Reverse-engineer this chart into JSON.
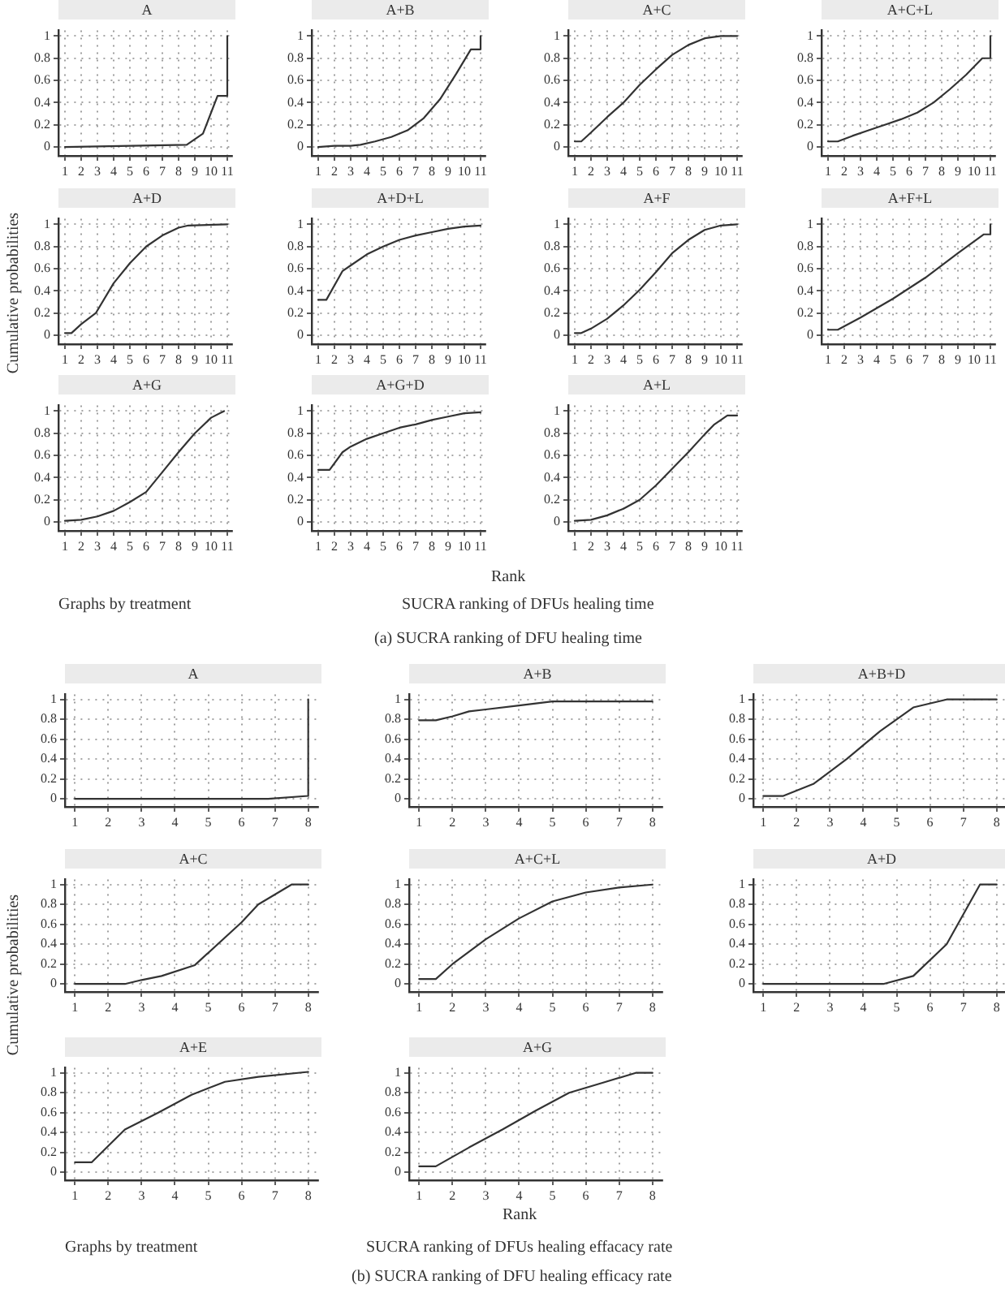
{
  "chart_data": [
    {
      "type": "line",
      "title": "A",
      "x": [
        1,
        8.5,
        9.5,
        10.4,
        11,
        11
      ],
      "values": [
        0,
        0.02,
        0.12,
        0.46,
        0.46,
        1
      ],
      "color": "#333333",
      "xlim": [
        0.6,
        11.3
      ],
      "xticks": [
        1,
        2,
        3,
        4,
        5,
        6,
        7,
        8,
        9,
        10,
        11
      ],
      "ylim": [
        -0.08,
        1.05
      ],
      "yticks": [
        0,
        0.2,
        0.4,
        0.6,
        0.8,
        1
      ],
      "grid": true
    },
    {
      "type": "line",
      "title": "A+B",
      "x": [
        1,
        2,
        3,
        3.6,
        4.5,
        5.5,
        6.5,
        7.5,
        8.5,
        9.5,
        10.4,
        11,
        11
      ],
      "values": [
        0,
        0.01,
        0.01,
        0.02,
        0.05,
        0.09,
        0.15,
        0.26,
        0.43,
        0.66,
        0.88,
        0.88,
        1
      ],
      "color": "#333333",
      "xlim": [
        0.6,
        11.3
      ],
      "xticks": [
        1,
        2,
        3,
        4,
        5,
        6,
        7,
        8,
        9,
        10,
        11
      ],
      "ylim": [
        -0.08,
        1.05
      ],
      "yticks": [
        0,
        0.2,
        0.4,
        0.6,
        0.8,
        1
      ],
      "grid": true
    },
    {
      "type": "line",
      "title": "A+C",
      "x": [
        1,
        1.4,
        2,
        3,
        4,
        5,
        6,
        7,
        8,
        9,
        10,
        11
      ],
      "values": [
        0.05,
        0.05,
        0.13,
        0.27,
        0.4,
        0.56,
        0.7,
        0.83,
        0.92,
        0.98,
        1,
        1
      ],
      "color": "#333333",
      "xlim": [
        0.6,
        11.3
      ],
      "xticks": [
        1,
        2,
        3,
        4,
        5,
        6,
        7,
        8,
        9,
        10,
        11
      ],
      "ylim": [
        -0.08,
        1.05
      ],
      "yticks": [
        0,
        0.2,
        0.4,
        0.6,
        0.8,
        1
      ],
      "grid": true
    },
    {
      "type": "line",
      "title": "A+C+L",
      "x": [
        1,
        1.6,
        2.5,
        3.5,
        4.5,
        5.5,
        6.5,
        7.5,
        8.5,
        9.5,
        10.5,
        11,
        11
      ],
      "values": [
        0.05,
        0.05,
        0.1,
        0.15,
        0.2,
        0.25,
        0.31,
        0.4,
        0.52,
        0.65,
        0.8,
        0.8,
        1
      ],
      "color": "#333333",
      "xlim": [
        0.6,
        11.3
      ],
      "xticks": [
        1,
        2,
        3,
        4,
        5,
        6,
        7,
        8,
        9,
        10,
        11
      ],
      "ylim": [
        -0.08,
        1.05
      ],
      "yticks": [
        0,
        0.2,
        0.4,
        0.6,
        0.8,
        1
      ],
      "grid": true
    },
    {
      "type": "line",
      "title": "A+D",
      "x": [
        1,
        1.4,
        2,
        2.9,
        4,
        5,
        6,
        7,
        8,
        8.6,
        11
      ],
      "values": [
        0.02,
        0.02,
        0.1,
        0.2,
        0.47,
        0.65,
        0.8,
        0.9,
        0.97,
        0.99,
        1
      ],
      "color": "#333333",
      "xlim": [
        0.6,
        11.3
      ],
      "xticks": [
        1,
        2,
        3,
        4,
        5,
        6,
        7,
        8,
        9,
        10,
        11
      ],
      "ylim": [
        -0.08,
        1.05
      ],
      "yticks": [
        0,
        0.2,
        0.4,
        0.6,
        0.8,
        1
      ],
      "grid": true
    },
    {
      "type": "line",
      "title": "A+D+L",
      "x": [
        1,
        1.5,
        2.5,
        3,
        4,
        5,
        6,
        7,
        8,
        9,
        10,
        11
      ],
      "values": [
        0.32,
        0.32,
        0.58,
        0.63,
        0.73,
        0.8,
        0.86,
        0.9,
        0.93,
        0.96,
        0.98,
        0.99
      ],
      "color": "#333333",
      "xlim": [
        0.6,
        11.3
      ],
      "xticks": [
        1,
        2,
        3,
        4,
        5,
        6,
        7,
        8,
        9,
        10,
        11
      ],
      "ylim": [
        -0.08,
        1.05
      ],
      "yticks": [
        0,
        0.2,
        0.4,
        0.6,
        0.8,
        1
      ],
      "grid": true
    },
    {
      "type": "line",
      "title": "A+F",
      "x": [
        1,
        1.4,
        2,
        3,
        4,
        5,
        6,
        7,
        8,
        9,
        10,
        11
      ],
      "values": [
        0.02,
        0.02,
        0.06,
        0.15,
        0.27,
        0.41,
        0.57,
        0.74,
        0.86,
        0.95,
        0.99,
        1
      ],
      "color": "#333333",
      "xlim": [
        0.6,
        11.3
      ],
      "xticks": [
        1,
        2,
        3,
        4,
        5,
        6,
        7,
        8,
        9,
        10,
        11
      ],
      "ylim": [
        -0.08,
        1.05
      ],
      "yticks": [
        0,
        0.2,
        0.4,
        0.6,
        0.8,
        1
      ],
      "grid": true
    },
    {
      "type": "line",
      "title": "A+F+L",
      "x": [
        1,
        1.6,
        3,
        5,
        7,
        9,
        10.6,
        11,
        11
      ],
      "values": [
        0.05,
        0.05,
        0.16,
        0.33,
        0.52,
        0.74,
        0.91,
        0.91,
        1
      ],
      "color": "#333333",
      "xlim": [
        0.6,
        11.3
      ],
      "xticks": [
        1,
        2,
        3,
        4,
        5,
        6,
        7,
        8,
        9,
        10,
        11
      ],
      "ylim": [
        -0.08,
        1.05
      ],
      "yticks": [
        0,
        0.2,
        0.4,
        0.6,
        0.8,
        1
      ],
      "grid": true
    },
    {
      "type": "line",
      "title": "A+G",
      "x": [
        1,
        2,
        3,
        4,
        5,
        6,
        7,
        8,
        9,
        10,
        10.8
      ],
      "values": [
        0.01,
        0.02,
        0.05,
        0.1,
        0.18,
        0.27,
        0.45,
        0.63,
        0.8,
        0.94,
        1
      ],
      "color": "#333333",
      "xlim": [
        0.6,
        11.3
      ],
      "xticks": [
        1,
        2,
        3,
        4,
        5,
        6,
        7,
        8,
        9,
        10,
        11
      ],
      "ylim": [
        -0.08,
        1.05
      ],
      "yticks": [
        0,
        0.2,
        0.4,
        0.6,
        0.8,
        1
      ],
      "grid": true
    },
    {
      "type": "line",
      "title": "A+G+D",
      "x": [
        1,
        1.7,
        2.5,
        3,
        4,
        5,
        6,
        7,
        8,
        9,
        10,
        11
      ],
      "values": [
        0.47,
        0.47,
        0.63,
        0.68,
        0.75,
        0.8,
        0.85,
        0.88,
        0.92,
        0.95,
        0.98,
        0.99
      ],
      "color": "#333333",
      "xlim": [
        0.6,
        11.3
      ],
      "xticks": [
        1,
        2,
        3,
        4,
        5,
        6,
        7,
        8,
        9,
        10,
        11
      ],
      "ylim": [
        -0.08,
        1.05
      ],
      "yticks": [
        0,
        0.2,
        0.4,
        0.6,
        0.8,
        1
      ],
      "grid": true
    },
    {
      "type": "line",
      "title": "A+L",
      "x": [
        1,
        2,
        3,
        4,
        5,
        6,
        7,
        8,
        9,
        9.6,
        10.4,
        11
      ],
      "values": [
        0.01,
        0.02,
        0.06,
        0.12,
        0.2,
        0.33,
        0.48,
        0.63,
        0.79,
        0.88,
        0.96,
        0.96
      ],
      "color": "#333333",
      "xlim": [
        0.6,
        11.3
      ],
      "xticks": [
        1,
        2,
        3,
        4,
        5,
        6,
        7,
        8,
        9,
        10,
        11
      ],
      "ylim": [
        -0.08,
        1.05
      ],
      "yticks": [
        0,
        0.2,
        0.4,
        0.6,
        0.8,
        1
      ],
      "grid": true
    },
    {
      "type": "other",
      "ylabel": "Cumulative probabilities",
      "xlabel": "Rank",
      "annotations": [
        "Graphs by treatment",
        "SUCRA ranking of DFUs healing time",
        "(a)  SUCRA ranking of DFU healing time"
      ]
    },
    {
      "type": "line",
      "title": "A",
      "x": [
        1,
        6.8,
        8,
        8
      ],
      "values": [
        0,
        0,
        0.03,
        1
      ],
      "color": "#333333",
      "xlim": [
        0.7,
        8.3
      ],
      "xticks": [
        1,
        2,
        3,
        4,
        5,
        6,
        7,
        8
      ],
      "ylim": [
        -0.08,
        1.05
      ],
      "yticks": [
        0,
        0.2,
        0.4,
        0.6,
        0.8,
        1
      ],
      "grid": true
    },
    {
      "type": "line",
      "title": "A+B",
      "x": [
        1,
        1.5,
        2,
        2.5,
        3,
        4,
        5,
        6,
        7,
        8
      ],
      "values": [
        0.79,
        0.79,
        0.83,
        0.88,
        0.9,
        0.94,
        0.98,
        0.98,
        0.98,
        0.98
      ],
      "color": "#333333",
      "xlim": [
        0.7,
        8.3
      ],
      "xticks": [
        1,
        2,
        3,
        4,
        5,
        6,
        7,
        8
      ],
      "ylim": [
        -0.08,
        1.05
      ],
      "yticks": [
        0,
        0.2,
        0.4,
        0.6,
        0.8,
        1
      ],
      "grid": true
    },
    {
      "type": "line",
      "title": "A+B+D",
      "x": [
        1,
        1.6,
        2.5,
        3.5,
        4.5,
        5.5,
        6.5,
        8
      ],
      "values": [
        0.03,
        0.03,
        0.15,
        0.4,
        0.68,
        0.92,
        1,
        1
      ],
      "color": "#333333",
      "xlim": [
        0.7,
        8.3
      ],
      "xticks": [
        1,
        2,
        3,
        4,
        5,
        6,
        7,
        8
      ],
      "ylim": [
        -0.08,
        1.05
      ],
      "yticks": [
        0,
        0.2,
        0.4,
        0.6,
        0.8,
        1
      ],
      "grid": true
    },
    {
      "type": "line",
      "title": "A+C",
      "x": [
        1,
        2.5,
        3,
        3.6,
        4.6,
        6,
        6.5,
        7.5,
        8
      ],
      "values": [
        0,
        0,
        0.04,
        0.08,
        0.19,
        0.62,
        0.8,
        1,
        1
      ],
      "color": "#333333",
      "xlim": [
        0.7,
        8.3
      ],
      "xticks": [
        1,
        2,
        3,
        4,
        5,
        6,
        7,
        8
      ],
      "ylim": [
        -0.08,
        1.05
      ],
      "yticks": [
        0,
        0.2,
        0.4,
        0.6,
        0.8,
        1
      ],
      "grid": true
    },
    {
      "type": "line",
      "title": "A+C+L",
      "x": [
        1,
        1.5,
        2,
        3,
        4,
        5,
        6,
        7,
        8
      ],
      "values": [
        0.05,
        0.05,
        0.2,
        0.45,
        0.66,
        0.83,
        0.92,
        0.97,
        1
      ],
      "color": "#333333",
      "xlim": [
        0.7,
        8.3
      ],
      "xticks": [
        1,
        2,
        3,
        4,
        5,
        6,
        7,
        8
      ],
      "ylim": [
        -0.08,
        1.05
      ],
      "yticks": [
        0,
        0.2,
        0.4,
        0.6,
        0.8,
        1
      ],
      "grid": true
    },
    {
      "type": "line",
      "title": "A+D",
      "x": [
        1,
        4.6,
        5.5,
        6.5,
        7.5,
        8
      ],
      "values": [
        0,
        0,
        0.08,
        0.4,
        1,
        1
      ],
      "color": "#333333",
      "xlim": [
        0.7,
        8.3
      ],
      "xticks": [
        1,
        2,
        3,
        4,
        5,
        6,
        7,
        8
      ],
      "ylim": [
        -0.08,
        1.05
      ],
      "yticks": [
        0,
        0.2,
        0.4,
        0.6,
        0.8,
        1
      ],
      "grid": true
    },
    {
      "type": "line",
      "title": "A+E",
      "x": [
        1,
        1.5,
        2.5,
        3.5,
        4.5,
        5.5,
        6.5,
        8
      ],
      "values": [
        0.1,
        0.1,
        0.43,
        0.6,
        0.78,
        0.91,
        0.96,
        1.01
      ],
      "color": "#333333",
      "xlim": [
        0.7,
        8.3
      ],
      "xticks": [
        1,
        2,
        3,
        4,
        5,
        6,
        7,
        8
      ],
      "ylim": [
        -0.08,
        1.05
      ],
      "yticks": [
        0,
        0.2,
        0.4,
        0.6,
        0.8,
        1
      ],
      "grid": true
    },
    {
      "type": "line",
      "title": "A+G",
      "x": [
        1,
        1.5,
        2.5,
        3.5,
        4.5,
        5.5,
        6.5,
        7.5,
        8
      ],
      "values": [
        0.06,
        0.06,
        0.25,
        0.43,
        0.62,
        0.8,
        0.9,
        1,
        1
      ],
      "color": "#333333",
      "xlim": [
        0.7,
        8.3
      ],
      "xticks": [
        1,
        2,
        3,
        4,
        5,
        6,
        7,
        8
      ],
      "ylim": [
        -0.08,
        1.05
      ],
      "yticks": [
        0,
        0.2,
        0.4,
        0.6,
        0.8,
        1
      ],
      "grid": true
    },
    {
      "type": "other",
      "ylabel": "Cumulative probabilities",
      "xlabel": "Rank",
      "annotations": [
        "Graphs by treatment",
        "SUCRA ranking of DFUs healing effacacy rate",
        "(b)  SUCRA ranking of DFU healing efficacy rate"
      ]
    }
  ]
}
